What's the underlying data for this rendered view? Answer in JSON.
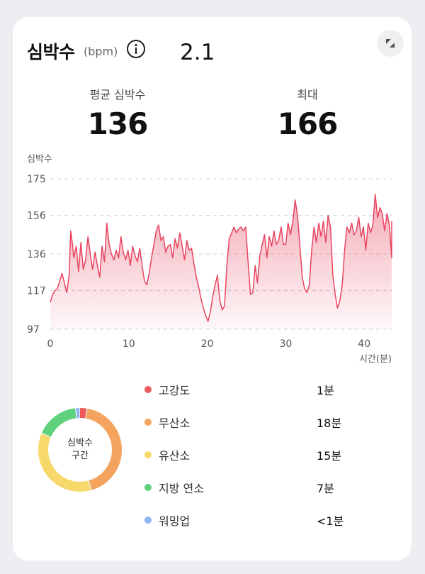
{
  "header": {
    "title": "심박수",
    "unit": "(bpm)",
    "version": "2.1"
  },
  "stats": {
    "avg_label": "평균 심박수",
    "avg_value": "136",
    "max_label": "최대",
    "max_value": "166"
  },
  "chart_data": {
    "type": "line",
    "title": "",
    "ylabel": "심박수",
    "xlabel": "시간(분)",
    "xlim": [
      0,
      43.5
    ],
    "ylim": [
      97,
      175
    ],
    "yticks": [
      97,
      117,
      136,
      156,
      175
    ],
    "xticks": [
      0,
      10,
      20,
      30,
      40
    ],
    "grid": true,
    "color": "#e8455f",
    "series": [
      {
        "values": [
          [
            0,
            111
          ],
          [
            0.3,
            115
          ],
          [
            0.6,
            117
          ],
          [
            0.9,
            118
          ],
          [
            1.2,
            122
          ],
          [
            1.5,
            126
          ],
          [
            1.8,
            121
          ],
          [
            2.1,
            116
          ],
          [
            2.4,
            125
          ],
          [
            2.6,
            148
          ],
          [
            2.8,
            142
          ],
          [
            3.0,
            134
          ],
          [
            3.3,
            140
          ],
          [
            3.6,
            127
          ],
          [
            3.9,
            142
          ],
          [
            4.2,
            128
          ],
          [
            4.5,
            133
          ],
          [
            4.8,
            145
          ],
          [
            5.1,
            136
          ],
          [
            5.4,
            128
          ],
          [
            5.7,
            137
          ],
          [
            6.0,
            130
          ],
          [
            6.3,
            124
          ],
          [
            6.6,
            140
          ],
          [
            6.9,
            132
          ],
          [
            7.2,
            152
          ],
          [
            7.5,
            141
          ],
          [
            7.8,
            136
          ],
          [
            8.1,
            133
          ],
          [
            8.4,
            138
          ],
          [
            8.7,
            134
          ],
          [
            9.0,
            145
          ],
          [
            9.3,
            137
          ],
          [
            9.6,
            133
          ],
          [
            9.9,
            138
          ],
          [
            10.2,
            130
          ],
          [
            10.5,
            140
          ],
          [
            10.8,
            135
          ],
          [
            11.1,
            132
          ],
          [
            11.4,
            139
          ],
          [
            11.7,
            130
          ],
          [
            12.0,
            122
          ],
          [
            12.3,
            120
          ],
          [
            12.6,
            126
          ],
          [
            12.9,
            134
          ],
          [
            13.2,
            141
          ],
          [
            13.5,
            148
          ],
          [
            13.8,
            151
          ],
          [
            14.1,
            143
          ],
          [
            14.4,
            145
          ],
          [
            14.7,
            137
          ],
          [
            15.0,
            140
          ],
          [
            15.3,
            141
          ],
          [
            15.6,
            134
          ],
          [
            15.9,
            144
          ],
          [
            16.2,
            139
          ],
          [
            16.5,
            147
          ],
          [
            16.8,
            140
          ],
          [
            17.1,
            133
          ],
          [
            17.4,
            143
          ],
          [
            17.7,
            138
          ],
          [
            18.0,
            139
          ],
          [
            18.3,
            131
          ],
          [
            18.6,
            124
          ],
          [
            18.9,
            119
          ],
          [
            19.2,
            113
          ],
          [
            19.5,
            108
          ],
          [
            19.8,
            104
          ],
          [
            20.1,
            101
          ],
          [
            20.4,
            106
          ],
          [
            20.7,
            114
          ],
          [
            21.0,
            120
          ],
          [
            21.3,
            125
          ],
          [
            21.6,
            112
          ],
          [
            21.9,
            107
          ],
          [
            22.2,
            109
          ],
          [
            22.5,
            130
          ],
          [
            22.8,
            144
          ],
          [
            23.1,
            147
          ],
          [
            23.4,
            150
          ],
          [
            23.7,
            147
          ],
          [
            24.0,
            149
          ],
          [
            24.3,
            150
          ],
          [
            24.6,
            148
          ],
          [
            24.9,
            150
          ],
          [
            25.2,
            132
          ],
          [
            25.5,
            115
          ],
          [
            25.8,
            116
          ],
          [
            26.1,
            130
          ],
          [
            26.4,
            121
          ],
          [
            26.7,
            135
          ],
          [
            27.0,
            141
          ],
          [
            27.3,
            146
          ],
          [
            27.6,
            134
          ],
          [
            27.9,
            145
          ],
          [
            28.2,
            140
          ],
          [
            28.5,
            148
          ],
          [
            28.8,
            141
          ],
          [
            29.1,
            143
          ],
          [
            29.4,
            150
          ],
          [
            29.7,
            141
          ],
          [
            30.0,
            141
          ],
          [
            30.3,
            152
          ],
          [
            30.6,
            146
          ],
          [
            30.9,
            153
          ],
          [
            31.2,
            164
          ],
          [
            31.5,
            156
          ],
          [
            31.8,
            140
          ],
          [
            32.1,
            124
          ],
          [
            32.4,
            118
          ],
          [
            32.7,
            116
          ],
          [
            33.0,
            120
          ],
          [
            33.3,
            138
          ],
          [
            33.6,
            150
          ],
          [
            33.9,
            142
          ],
          [
            34.2,
            152
          ],
          [
            34.5,
            145
          ],
          [
            34.8,
            153
          ],
          [
            35.1,
            142
          ],
          [
            35.4,
            156
          ],
          [
            35.7,
            150
          ],
          [
            36.0,
            125
          ],
          [
            36.3,
            115
          ],
          [
            36.6,
            108
          ],
          [
            36.9,
            112
          ],
          [
            37.2,
            120
          ],
          [
            37.5,
            138
          ],
          [
            37.8,
            150
          ],
          [
            38.1,
            147
          ],
          [
            38.4,
            152
          ],
          [
            38.7,
            146
          ],
          [
            39.0,
            148
          ],
          [
            39.3,
            155
          ],
          [
            39.6,
            145
          ],
          [
            39.9,
            150
          ],
          [
            40.2,
            138
          ],
          [
            40.5,
            152
          ],
          [
            40.8,
            147
          ],
          [
            41.1,
            151
          ],
          [
            41.4,
            167
          ],
          [
            41.7,
            155
          ],
          [
            42.0,
            160
          ],
          [
            42.3,
            157
          ],
          [
            42.6,
            148
          ],
          [
            42.9,
            157
          ],
          [
            43.2,
            151
          ],
          [
            43.5,
            134
          ],
          [
            43.8,
            153
          ]
        ]
      }
    ]
  },
  "zones_title": [
    "심박수",
    "구간"
  ],
  "zones": [
    {
      "label": "고강도",
      "value": "1분",
      "color": "#ec5b5b",
      "minutes": 1.2
    },
    {
      "label": "무산소",
      "value": "18분",
      "color": "#f4a45e",
      "minutes": 18
    },
    {
      "label": "유산소",
      "value": "15분",
      "color": "#f7d86a",
      "minutes": 15
    },
    {
      "label": "지방 연소",
      "value": "7분",
      "color": "#5fd17c",
      "minutes": 7
    },
    {
      "label": "워밍업",
      "value": "<1분",
      "color": "#8fb6f2",
      "minutes": 0.7
    }
  ]
}
